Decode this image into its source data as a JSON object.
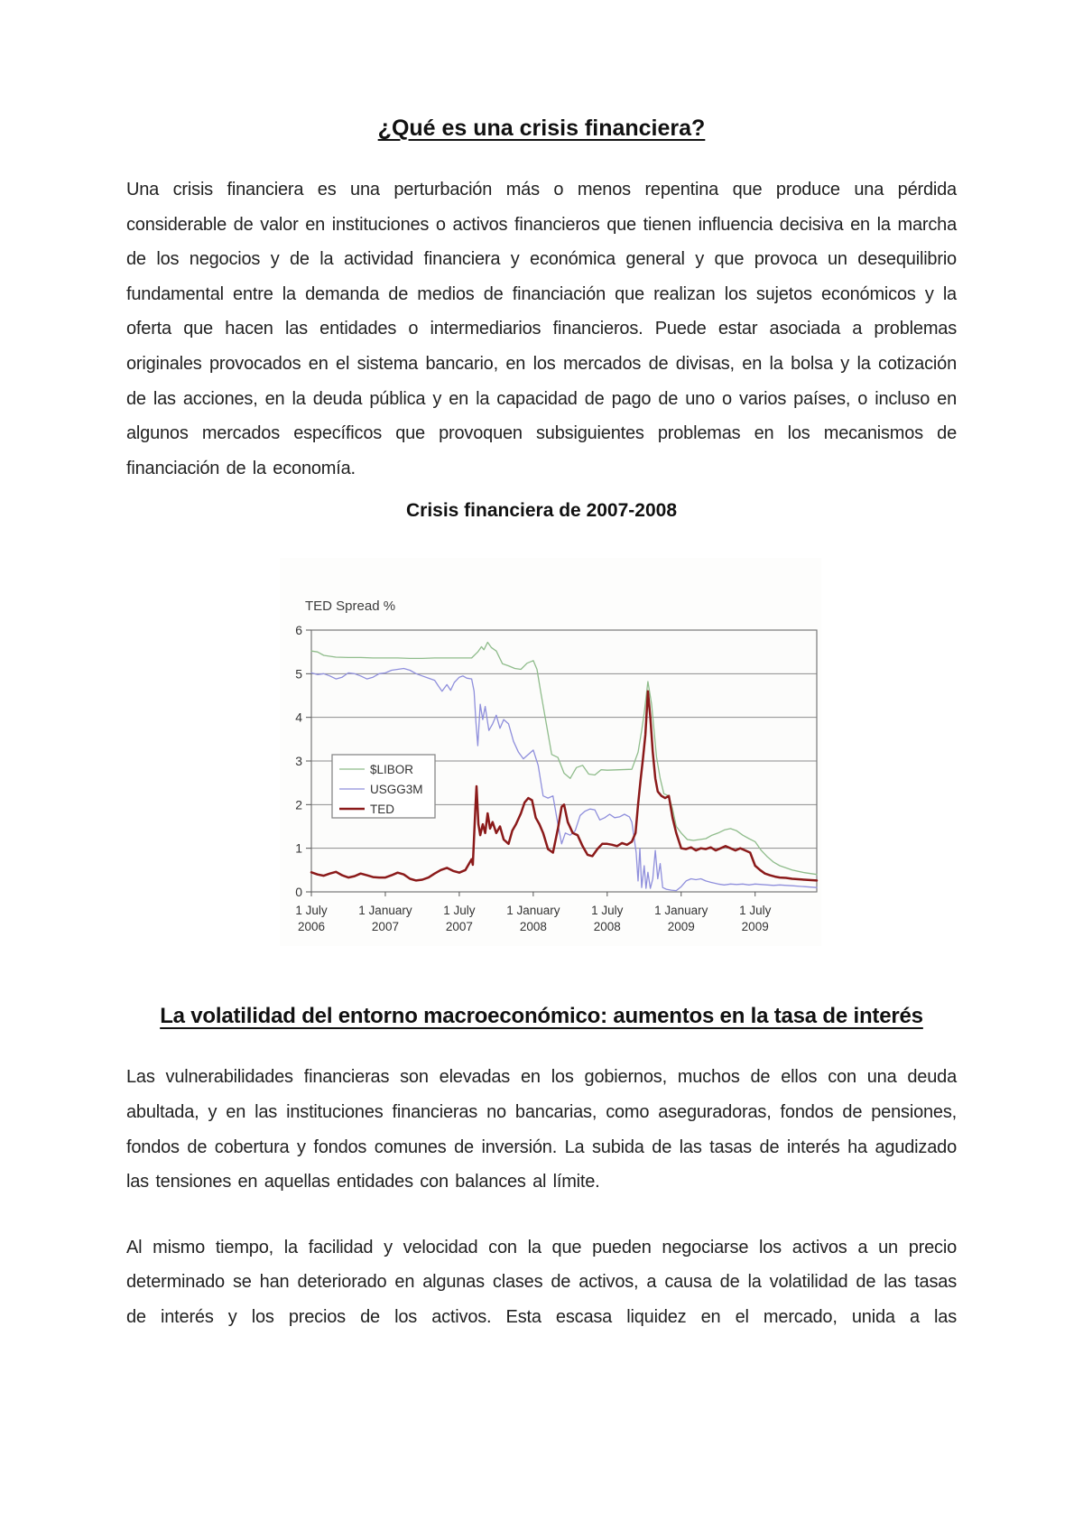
{
  "doc": {
    "title": "¿Qué es una crisis financiera?",
    "paragraph1": "Una crisis financiera es una perturbación más o menos repentina que produce una pérdida considerable de valor en instituciones o activos financieros que tienen influencia decisiva en la marcha de los negocios y de la actividad financiera y económica general y que provoca un desequilibrio fundamental entre la demanda de medios de financiación que realizan los sujetos económicos y la oferta que hacen las entidades o intermediarios financieros. Puede estar asociada a problemas originales provocados en el sistema bancario, en los mercados de divisas, en la bolsa y la cotización de las acciones, en la deuda pública y en la capacidad de pago de uno o varios países, o incluso en algunos mercados específicos que provoquen subsiguientes problemas en los mecanismos de financiación de la economía.",
    "chart_caption": "Crisis financiera de 2007-2008",
    "section2_heading": "La volatilidad del entorno macroeconómico: aumentos en la tasa de interés",
    "paragraph2": "Las vulnerabilidades financieras son elevadas en los gobiernos, muchos de ellos con una deuda abultada, y en las instituciones financieras no bancarias, como aseguradoras, fondos de pensiones, fondos de cobertura y fondos comunes de inversión. La subida de las tasas de interés ha agudizado las tensiones en aquellas entidades con balances al límite.",
    "paragraph3": "Al mismo tiempo, la facilidad y velocidad con la que pueden negociarse los activos a un precio determinado se han deteriorado en algunas clases de activos, a causa de la volatilidad de las tasas de interés y los precios de los activos. Esta escasa liquidez en el mercado, unida a las"
  },
  "chart_data": {
    "type": "line",
    "title": "TED Spread %",
    "xlabel": "",
    "ylabel": "",
    "ylim": [
      0,
      6
    ],
    "y_ticks": [
      0,
      1,
      2,
      3,
      4,
      5,
      6
    ],
    "grid": true,
    "legend_position": "middle-left",
    "x_unit": "months since 1 July 2006",
    "x_range_months": [
      0,
      41
    ],
    "x_tick_months": [
      0,
      6,
      12,
      18,
      24,
      30,
      36
    ],
    "x_tick_labels": [
      [
        "1 July",
        "2006"
      ],
      [
        "1 January",
        "2007"
      ],
      [
        "1 July",
        "2007"
      ],
      [
        "1 January",
        "2008"
      ],
      [
        "1 July",
        "2008"
      ],
      [
        "1 January",
        "2009"
      ],
      [
        "1 July",
        "2009"
      ]
    ],
    "series": [
      {
        "name": "$LIBOR",
        "color": "#8fbc8b",
        "width": 1.3,
        "points": [
          [
            0,
            5.52
          ],
          [
            0.5,
            5.5
          ],
          [
            1,
            5.42
          ],
          [
            2,
            5.38
          ],
          [
            3,
            5.37
          ],
          [
            4,
            5.37
          ],
          [
            5,
            5.36
          ],
          [
            6,
            5.36
          ],
          [
            7,
            5.36
          ],
          [
            8,
            5.35
          ],
          [
            9,
            5.35
          ],
          [
            10,
            5.36
          ],
          [
            11,
            5.36
          ],
          [
            12,
            5.36
          ],
          [
            13,
            5.36
          ],
          [
            13.5,
            5.5
          ],
          [
            13.8,
            5.62
          ],
          [
            14,
            5.55
          ],
          [
            14.3,
            5.72
          ],
          [
            14.6,
            5.6
          ],
          [
            15,
            5.52
          ],
          [
            15.5,
            5.23
          ],
          [
            16,
            5.18
          ],
          [
            16.5,
            5.12
          ],
          [
            17,
            5.1
          ],
          [
            17.5,
            5.24
          ],
          [
            18,
            5.3
          ],
          [
            18.3,
            5.1
          ],
          [
            18.6,
            4.6
          ],
          [
            19,
            3.95
          ],
          [
            19.5,
            3.15
          ],
          [
            20,
            3.08
          ],
          [
            20.5,
            2.72
          ],
          [
            21,
            2.6
          ],
          [
            21.5,
            2.85
          ],
          [
            22,
            2.9
          ],
          [
            22.5,
            2.7
          ],
          [
            23,
            2.68
          ],
          [
            23.5,
            2.8
          ],
          [
            24,
            2.79
          ],
          [
            25,
            2.8
          ],
          [
            26,
            2.81
          ],
          [
            26.5,
            3.2
          ],
          [
            26.8,
            3.7
          ],
          [
            27,
            4.1
          ],
          [
            27.3,
            4.82
          ],
          [
            27.6,
            4.3
          ],
          [
            28,
            3.1
          ],
          [
            28.3,
            2.6
          ],
          [
            28.6,
            2.25
          ],
          [
            29,
            2.2
          ],
          [
            29.3,
            1.9
          ],
          [
            29.6,
            1.5
          ],
          [
            30,
            1.35
          ],
          [
            30.5,
            1.2
          ],
          [
            31,
            1.18
          ],
          [
            32,
            1.22
          ],
          [
            32.5,
            1.3
          ],
          [
            33,
            1.35
          ],
          [
            33.5,
            1.42
          ],
          [
            34,
            1.45
          ],
          [
            34.5,
            1.4
          ],
          [
            35,
            1.3
          ],
          [
            35.5,
            1.22
          ],
          [
            36,
            1.15
          ],
          [
            36.5,
            0.95
          ],
          [
            37,
            0.8
          ],
          [
            37.5,
            0.68
          ],
          [
            38,
            0.6
          ],
          [
            39,
            0.5
          ],
          [
            40,
            0.44
          ],
          [
            41,
            0.4
          ]
        ]
      },
      {
        "name": "USGG3M",
        "color": "#8f8fdc",
        "width": 1.3,
        "points": [
          [
            0,
            5.02
          ],
          [
            0.5,
            4.98
          ],
          [
            1,
            5.0
          ],
          [
            1.5,
            4.95
          ],
          [
            2,
            4.88
          ],
          [
            2.5,
            4.92
          ],
          [
            3,
            5.02
          ],
          [
            3.5,
            5.0
          ],
          [
            4,
            4.95
          ],
          [
            4.5,
            4.88
          ],
          [
            5,
            4.92
          ],
          [
            5.5,
            5.0
          ],
          [
            6,
            5.02
          ],
          [
            6.5,
            5.08
          ],
          [
            7,
            5.1
          ],
          [
            7.5,
            5.12
          ],
          [
            8,
            5.08
          ],
          [
            8.5,
            5.0
          ],
          [
            9,
            4.95
          ],
          [
            9.5,
            4.9
          ],
          [
            10,
            4.85
          ],
          [
            10.3,
            4.72
          ],
          [
            10.6,
            4.6
          ],
          [
            11,
            4.75
          ],
          [
            11.3,
            4.62
          ],
          [
            11.6,
            4.8
          ],
          [
            12,
            4.92
          ],
          [
            12.3,
            4.95
          ],
          [
            12.6,
            4.9
          ],
          [
            13,
            4.88
          ],
          [
            13.2,
            4.6
          ],
          [
            13.35,
            3.9
          ],
          [
            13.5,
            3.35
          ],
          [
            13.7,
            4.3
          ],
          [
            13.9,
            3.95
          ],
          [
            14.1,
            4.25
          ],
          [
            14.4,
            3.7
          ],
          [
            14.7,
            3.85
          ],
          [
            15,
            4.05
          ],
          [
            15.3,
            3.75
          ],
          [
            15.6,
            3.95
          ],
          [
            16,
            3.85
          ],
          [
            16.4,
            3.45
          ],
          [
            16.8,
            3.2
          ],
          [
            17.2,
            3.05
          ],
          [
            17.6,
            3.15
          ],
          [
            18,
            3.25
          ],
          [
            18.4,
            2.9
          ],
          [
            18.8,
            2.2
          ],
          [
            19.2,
            2.15
          ],
          [
            19.6,
            2.2
          ],
          [
            20,
            1.55
          ],
          [
            20.3,
            1.1
          ],
          [
            20.6,
            1.35
          ],
          [
            21,
            1.3
          ],
          [
            21.4,
            1.4
          ],
          [
            21.8,
            1.75
          ],
          [
            22.2,
            1.85
          ],
          [
            22.6,
            1.9
          ],
          [
            23,
            1.88
          ],
          [
            23.4,
            1.65
          ],
          [
            23.8,
            1.7
          ],
          [
            24.2,
            1.78
          ],
          [
            24.6,
            1.7
          ],
          [
            25,
            1.72
          ],
          [
            25.4,
            1.78
          ],
          [
            25.8,
            1.72
          ],
          [
            26,
            1.6
          ],
          [
            26.2,
            1.2
          ],
          [
            26.35,
            0.9
          ],
          [
            26.5,
            0.25
          ],
          [
            26.65,
            1.0
          ],
          [
            26.8,
            0.1
          ],
          [
            27,
            0.6
          ],
          [
            27.15,
            0.08
          ],
          [
            27.3,
            0.45
          ],
          [
            27.5,
            0.08
          ],
          [
            27.7,
            0.3
          ],
          [
            27.9,
            0.95
          ],
          [
            28.1,
            0.3
          ],
          [
            28.3,
            0.65
          ],
          [
            28.5,
            0.1
          ],
          [
            28.8,
            0.06
          ],
          [
            29.2,
            0.04
          ],
          [
            29.6,
            0.03
          ],
          [
            30,
            0.12
          ],
          [
            30.4,
            0.25
          ],
          [
            30.8,
            0.3
          ],
          [
            31.2,
            0.28
          ],
          [
            31.6,
            0.3
          ],
          [
            32,
            0.25
          ],
          [
            32.4,
            0.22
          ],
          [
            33,
            0.18
          ],
          [
            33.5,
            0.16
          ],
          [
            34,
            0.18
          ],
          [
            34.5,
            0.17
          ],
          [
            35,
            0.18
          ],
          [
            35.5,
            0.16
          ],
          [
            36,
            0.18
          ],
          [
            36.5,
            0.17
          ],
          [
            37,
            0.16
          ],
          [
            37.5,
            0.15
          ],
          [
            38,
            0.16
          ],
          [
            38.5,
            0.15
          ],
          [
            39,
            0.14
          ],
          [
            40,
            0.12
          ],
          [
            41,
            0.1
          ]
        ]
      },
      {
        "name": "TED",
        "color": "#8b1a1a",
        "width": 2.5,
        "points": [
          [
            0,
            0.45
          ],
          [
            0.5,
            0.4
          ],
          [
            1,
            0.37
          ],
          [
            1.5,
            0.42
          ],
          [
            2,
            0.46
          ],
          [
            2.5,
            0.38
          ],
          [
            3,
            0.33
          ],
          [
            3.5,
            0.36
          ],
          [
            4,
            0.42
          ],
          [
            4.5,
            0.38
          ],
          [
            5,
            0.34
          ],
          [
            5.5,
            0.33
          ],
          [
            6,
            0.33
          ],
          [
            6.5,
            0.38
          ],
          [
            7,
            0.44
          ],
          [
            7.5,
            0.4
          ],
          [
            8,
            0.3
          ],
          [
            8.5,
            0.26
          ],
          [
            9,
            0.28
          ],
          [
            9.5,
            0.33
          ],
          [
            10,
            0.42
          ],
          [
            10.5,
            0.5
          ],
          [
            11,
            0.55
          ],
          [
            11.5,
            0.48
          ],
          [
            12,
            0.44
          ],
          [
            12.5,
            0.5
          ],
          [
            12.8,
            0.65
          ],
          [
            13,
            0.75
          ],
          [
            13.1,
            0.62
          ],
          [
            13.3,
            1.9
          ],
          [
            13.4,
            2.42
          ],
          [
            13.55,
            1.55
          ],
          [
            13.7,
            1.3
          ],
          [
            13.9,
            1.55
          ],
          [
            14.1,
            1.35
          ],
          [
            14.3,
            1.8
          ],
          [
            14.5,
            1.45
          ],
          [
            14.7,
            1.6
          ],
          [
            15,
            1.35
          ],
          [
            15.3,
            1.5
          ],
          [
            15.6,
            1.2
          ],
          [
            16,
            1.1
          ],
          [
            16.3,
            1.4
          ],
          [
            16.6,
            1.55
          ],
          [
            17,
            1.8
          ],
          [
            17.3,
            2.05
          ],
          [
            17.6,
            2.15
          ],
          [
            17.9,
            2.1
          ],
          [
            18.2,
            1.7
          ],
          [
            18.5,
            1.55
          ],
          [
            18.8,
            1.35
          ],
          [
            19.2,
            0.98
          ],
          [
            19.6,
            0.9
          ],
          [
            20,
            1.45
          ],
          [
            20.3,
            1.95
          ],
          [
            20.5,
            2.0
          ],
          [
            20.8,
            1.6
          ],
          [
            21.2,
            1.35
          ],
          [
            21.6,
            1.3
          ],
          [
            22,
            1.05
          ],
          [
            22.4,
            0.85
          ],
          [
            22.8,
            0.82
          ],
          [
            23.2,
            0.98
          ],
          [
            23.6,
            1.1
          ],
          [
            24,
            1.1
          ],
          [
            24.4,
            1.08
          ],
          [
            24.8,
            1.05
          ],
          [
            25.2,
            1.12
          ],
          [
            25.6,
            1.08
          ],
          [
            26,
            1.15
          ],
          [
            26.3,
            1.35
          ],
          [
            26.5,
            2.0
          ],
          [
            26.7,
            2.55
          ],
          [
            26.9,
            3.05
          ],
          [
            27.1,
            3.6
          ],
          [
            27.3,
            4.6
          ],
          [
            27.5,
            4.0
          ],
          [
            27.7,
            3.2
          ],
          [
            27.9,
            2.6
          ],
          [
            28.1,
            2.3
          ],
          [
            28.4,
            2.2
          ],
          [
            28.7,
            2.15
          ],
          [
            29,
            2.2
          ],
          [
            29.3,
            1.7
          ],
          [
            29.6,
            1.35
          ],
          [
            30,
            1.0
          ],
          [
            30.4,
            0.98
          ],
          [
            30.8,
            1.02
          ],
          [
            31.2,
            0.95
          ],
          [
            31.6,
            1.0
          ],
          [
            32,
            0.98
          ],
          [
            32.4,
            1.02
          ],
          [
            32.8,
            0.95
          ],
          [
            33.2,
            1.0
          ],
          [
            33.6,
            1.05
          ],
          [
            34,
            1.0
          ],
          [
            34.4,
            0.95
          ],
          [
            34.8,
            1.0
          ],
          [
            35.2,
            0.95
          ],
          [
            35.6,
            0.9
          ],
          [
            36,
            0.6
          ],
          [
            36.4,
            0.5
          ],
          [
            36.8,
            0.42
          ],
          [
            37.2,
            0.38
          ],
          [
            37.6,
            0.35
          ],
          [
            38,
            0.33
          ],
          [
            38.5,
            0.32
          ],
          [
            39,
            0.3
          ],
          [
            40,
            0.28
          ],
          [
            41,
            0.26
          ]
        ]
      }
    ]
  }
}
